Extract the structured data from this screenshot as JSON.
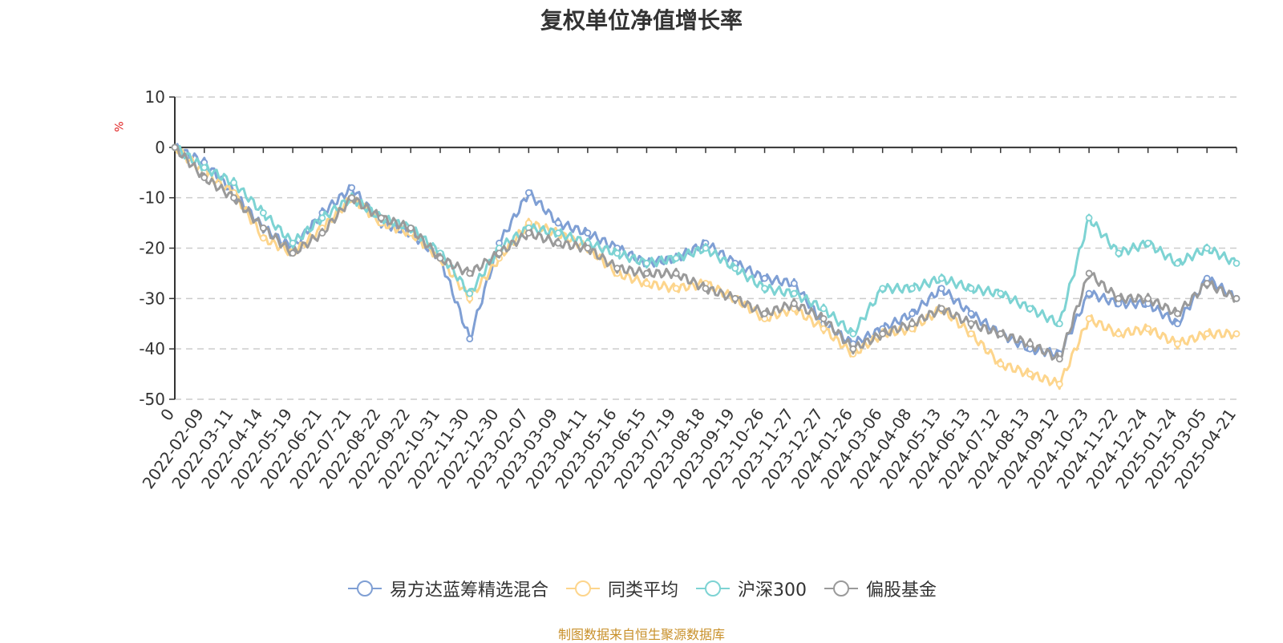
{
  "title": "复权单位净值增长率",
  "unit": "%",
  "source": "制图数据来自恒生聚源数据库",
  "chart_data": {
    "type": "line",
    "ylim": [
      -50,
      10
    ],
    "yticks": [
      10,
      0,
      -10,
      -20,
      -30,
      -40,
      -50
    ],
    "grid": true,
    "legend_position": "bottom",
    "x_labels": [
      "0",
      "2022-02-09",
      "2022-03-11",
      "2022-04-14",
      "2022-05-19",
      "2022-06-21",
      "2022-07-21",
      "2022-08-22",
      "2022-09-22",
      "2022-10-31",
      "2022-11-30",
      "2022-12-30",
      "2023-02-07",
      "2023-03-09",
      "2023-04-11",
      "2023-05-16",
      "2023-06-15",
      "2023-07-19",
      "2023-08-18",
      "2023-09-19",
      "2023-10-26",
      "2023-11-27",
      "2023-12-27",
      "2024-01-26",
      "2024-03-06",
      "2024-04-08",
      "2024-05-13",
      "2024-06-13",
      "2024-07-12",
      "2024-08-13",
      "2024-09-12",
      "2024-10-23",
      "2024-11-22",
      "2024-12-24",
      "2025-01-24",
      "2025-03-05",
      "2025-04-21"
    ],
    "series": [
      {
        "name": "易方达蓝筹精选混合",
        "color": "#7f9fd4",
        "values": [
          0,
          -3,
          -9,
          -16,
          -20,
          -13,
          -8,
          -15,
          -17,
          -22,
          -38,
          -19,
          -9,
          -15,
          -17,
          -20,
          -23,
          -22,
          -19,
          -23,
          -26,
          -27,
          -35,
          -39,
          -36,
          -33,
          -28,
          -33,
          -37,
          -40,
          -41,
          -29,
          -31,
          -31,
          -35,
          -26,
          -30
        ]
      },
      {
        "name": "同类平均",
        "color": "#fdd58c",
        "values": [
          0,
          -5,
          -9,
          -18,
          -21,
          -16,
          -10,
          -15,
          -17,
          -22,
          -30,
          -22,
          -15,
          -17,
          -20,
          -25,
          -27,
          -28,
          -27,
          -30,
          -34,
          -32,
          -36,
          -41,
          -37,
          -36,
          -32,
          -37,
          -43,
          -45,
          -47,
          -34,
          -37,
          -36,
          -39,
          -37,
          -37
        ]
      },
      {
        "name": "沪深300",
        "color": "#7dd3d3",
        "values": [
          0,
          -4,
          -7,
          -13,
          -19,
          -14,
          -10,
          -14,
          -16,
          -21,
          -29,
          -20,
          -16,
          -17,
          -19,
          -21,
          -23,
          -22,
          -20,
          -24,
          -28,
          -29,
          -32,
          -37,
          -28,
          -28,
          -26,
          -28,
          -29,
          -32,
          -35,
          -14,
          -21,
          -19,
          -23,
          -20,
          -23
        ]
      },
      {
        "name": "偏股基金",
        "color": "#9a9a9a",
        "values": [
          0,
          -6,
          -10,
          -16,
          -21,
          -17,
          -10,
          -14,
          -16,
          -22,
          -25,
          -21,
          -17,
          -19,
          -20,
          -24,
          -25,
          -25,
          -28,
          -30,
          -33,
          -31,
          -34,
          -40,
          -37,
          -35,
          -32,
          -35,
          -37,
          -39,
          -42,
          -25,
          -30,
          -30,
          -33,
          -27,
          -30
        ]
      }
    ]
  }
}
